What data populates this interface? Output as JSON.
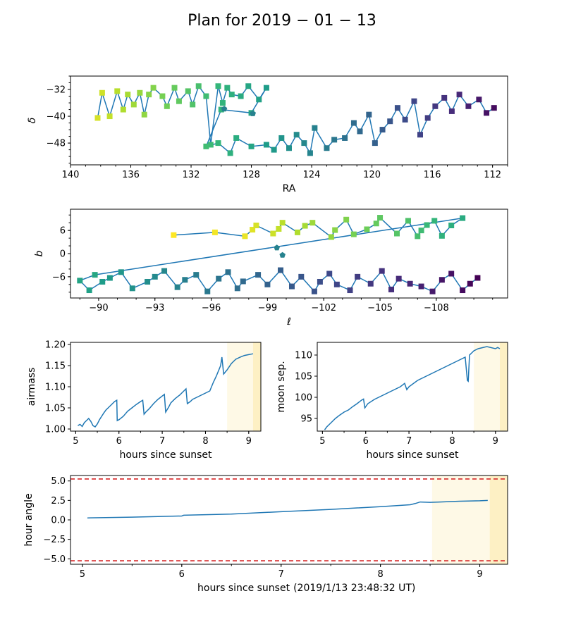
{
  "title": "Plan for 2019 − 01 − 13",
  "charts": {
    "sky": {
      "xlabel": "RA",
      "ylabel": "δ",
      "xlim": [
        140,
        111
      ],
      "ylim": [
        -54.5,
        -28
      ],
      "xticks": [
        "140",
        "136",
        "132",
        "128",
        "124",
        "120",
        "116",
        "112"
      ],
      "yticks": [
        "−32",
        "−40",
        "−48"
      ],
      "points": [
        [
          138.2,
          -40.5
        ],
        [
          137.9,
          -33.0
        ],
        [
          137.4,
          -40.0
        ],
        [
          136.9,
          -32.5
        ],
        [
          136.5,
          -38.0
        ],
        [
          136.2,
          -33.5
        ],
        [
          135.8,
          -36.5
        ],
        [
          135.4,
          -33.0
        ],
        [
          135.1,
          -39.5
        ],
        [
          134.8,
          -33.5
        ],
        [
          134.5,
          -31.5
        ],
        [
          133.9,
          -34.0
        ],
        [
          133.6,
          -37.0
        ],
        [
          133.1,
          -31.5
        ],
        [
          132.8,
          -35.5
        ],
        [
          132.2,
          -32.5
        ],
        [
          131.9,
          -36.5
        ],
        [
          131.5,
          -31.0
        ],
        [
          131.0,
          -34.0
        ],
        [
          130.7,
          -48.5
        ],
        [
          130.2,
          -31.0
        ],
        [
          129.9,
          -36.0
        ],
        [
          129.6,
          -31.5
        ],
        [
          129.3,
          -33.5
        ],
        [
          128.7,
          -34.0
        ],
        [
          128.2,
          -31.0
        ],
        [
          127.5,
          -35.0
        ],
        [
          127.0,
          -31.5
        ],
        [
          128.0,
          -39.0
        ],
        [
          130.0,
          -38.0
        ],
        [
          131.0,
          -49.0
        ],
        [
          130.2,
          -48.0
        ],
        [
          129.4,
          -51.0
        ],
        [
          129.0,
          -46.5
        ],
        [
          128.0,
          -49.0
        ],
        [
          127.0,
          -48.5
        ],
        [
          126.5,
          -50.0
        ],
        [
          126.0,
          -46.5
        ],
        [
          125.5,
          -49.5
        ],
        [
          125.0,
          -45.5
        ],
        [
          124.5,
          -48.0
        ],
        [
          124.1,
          -51.0
        ],
        [
          123.8,
          -43.5
        ],
        [
          123.0,
          -49.5
        ],
        [
          122.5,
          -47.0
        ],
        [
          121.8,
          -46.5
        ],
        [
          121.2,
          -42.0
        ],
        [
          120.8,
          -44.5
        ],
        [
          120.2,
          -39.5
        ],
        [
          119.8,
          -48.0
        ],
        [
          119.3,
          -44.0
        ],
        [
          118.8,
          -41.5
        ],
        [
          118.3,
          -37.5
        ],
        [
          117.8,
          -41.0
        ],
        [
          117.2,
          -35.5
        ],
        [
          116.8,
          -45.5
        ],
        [
          116.3,
          -40.5
        ],
        [
          115.8,
          -37.0
        ],
        [
          115.2,
          -34.5
        ],
        [
          114.7,
          -38.5
        ],
        [
          114.2,
          -33.5
        ],
        [
          113.6,
          -37.0
        ],
        [
          112.9,
          -35.0
        ],
        [
          112.4,
          -39.0
        ],
        [
          111.9,
          -37.5
        ]
      ],
      "pentagons": [
        [
          129.8,
          -37.8
        ],
        [
          127.9,
          -39.2
        ]
      ]
    },
    "galactic": {
      "xlabel": "ℓ",
      "ylabel": "b",
      "xlim": [
        -88.5,
        -111.8
      ],
      "ylim": [
        -11.5,
        11.5
      ],
      "xticks": [
        "−90",
        "−93",
        "−96",
        "−99",
        "−102",
        "−105",
        "−108"
      ],
      "yticks": [
        "6",
        "0",
        "−6"
      ],
      "points": [
        [
          -94.0,
          4.8
        ],
        [
          -96.2,
          5.5
        ],
        [
          -97.8,
          4.5
        ],
        [
          -98.2,
          6.2
        ],
        [
          -98.4,
          7.3
        ],
        [
          -99.3,
          5.2
        ],
        [
          -99.6,
          6.4
        ],
        [
          -99.8,
          8.0
        ],
        [
          -100.6,
          5.5
        ],
        [
          -101.0,
          7.2
        ],
        [
          -101.4,
          8.0
        ],
        [
          -102.4,
          4.3
        ],
        [
          -102.6,
          6.1
        ],
        [
          -103.2,
          8.8
        ],
        [
          -103.6,
          5.0
        ],
        [
          -104.3,
          6.3
        ],
        [
          -104.8,
          7.8
        ],
        [
          -105.0,
          9.3
        ],
        [
          -105.9,
          5.2
        ],
        [
          -106.5,
          8.5
        ],
        [
          -107.0,
          4.5
        ],
        [
          -107.2,
          6.0
        ],
        [
          -107.5,
          7.4
        ],
        [
          -107.9,
          8.5
        ],
        [
          -108.3,
          4.6
        ],
        [
          -108.8,
          7.3
        ],
        [
          -109.4,
          9.2
        ],
        [
          -89.8,
          -5.5
        ],
        [
          -89.0,
          -7.0
        ],
        [
          -89.5,
          -9.5
        ],
        [
          -90.2,
          -7.3
        ],
        [
          -90.6,
          -6.3
        ],
        [
          -91.2,
          -4.8
        ],
        [
          -91.8,
          -9.0
        ],
        [
          -92.6,
          -7.3
        ],
        [
          -93.0,
          -6.0
        ],
        [
          -93.5,
          -4.5
        ],
        [
          -94.2,
          -8.7
        ],
        [
          -94.6,
          -6.8
        ],
        [
          -95.2,
          -5.5
        ],
        [
          -95.8,
          -9.8
        ],
        [
          -96.4,
          -6.5
        ],
        [
          -96.9,
          -4.8
        ],
        [
          -97.4,
          -9.0
        ],
        [
          -97.7,
          -7.2
        ],
        [
          -98.5,
          -5.5
        ],
        [
          -99.0,
          -8.0
        ],
        [
          -99.7,
          -4.3
        ],
        [
          -100.3,
          -8.5
        ],
        [
          -100.8,
          -6.0
        ],
        [
          -101.5,
          -9.8
        ],
        [
          -101.8,
          -7.3
        ],
        [
          -102.3,
          -5.2
        ],
        [
          -102.7,
          -8.0
        ],
        [
          -103.4,
          -9.5
        ],
        [
          -103.8,
          -6.0
        ],
        [
          -104.5,
          -7.8
        ],
        [
          -105.1,
          -4.5
        ],
        [
          -105.6,
          -9.3
        ],
        [
          -106.0,
          -6.5
        ],
        [
          -106.6,
          -7.8
        ],
        [
          -107.2,
          -8.5
        ],
        [
          -107.8,
          -9.8
        ],
        [
          -108.3,
          -6.8
        ],
        [
          -108.8,
          -5.2
        ],
        [
          -109.4,
          -9.5
        ],
        [
          -109.8,
          -7.8
        ],
        [
          -110.2,
          -6.3
        ]
      ],
      "pentagons": [
        [
          -99.5,
          1.5
        ],
        [
          -99.8,
          -0.4
        ]
      ]
    },
    "airmass": {
      "xlabel": "hours since sunset",
      "ylabel": "airmass",
      "xlim": [
        4.88,
        9.28
      ],
      "ylim": [
        0.995,
        1.205
      ],
      "xticks": [
        "5",
        "6",
        "7",
        "8",
        "9"
      ],
      "yticks": [
        "1.00",
        "1.05",
        "1.10",
        "1.15",
        "1.20"
      ],
      "twilight": [
        [
          8.5,
          9.1,
          "#fef9e6"
        ],
        [
          9.1,
          9.28,
          "#fdf0c4"
        ]
      ],
      "x": [
        5.05,
        5.1,
        5.15,
        5.2,
        5.25,
        5.3,
        5.35,
        5.4,
        5.45,
        5.5,
        5.55,
        5.6,
        5.65,
        5.7,
        5.75,
        5.8,
        5.85,
        5.9,
        5.95,
        5.96,
        6.0,
        6.1,
        6.2,
        6.3,
        6.4,
        6.5,
        6.55,
        6.58,
        6.62,
        6.7,
        6.8,
        6.9,
        7.0,
        7.05,
        7.08,
        7.15,
        7.2,
        7.3,
        7.4,
        7.5,
        7.55,
        7.58,
        7.65,
        7.7,
        7.8,
        7.9,
        8.0,
        8.1,
        8.18,
        8.25,
        8.35,
        8.38,
        8.42,
        8.5,
        8.6,
        8.7,
        8.8,
        8.9,
        9.0,
        9.05,
        9.1
      ],
      "y": [
        1.008,
        1.011,
        1.006,
        1.015,
        1.02,
        1.025,
        1.018,
        1.008,
        1.005,
        1.012,
        1.022,
        1.03,
        1.038,
        1.045,
        1.05,
        1.055,
        1.06,
        1.065,
        1.068,
        1.02,
        1.022,
        1.03,
        1.042,
        1.05,
        1.058,
        1.065,
        1.068,
        1.035,
        1.04,
        1.048,
        1.06,
        1.07,
        1.078,
        1.082,
        1.04,
        1.052,
        1.062,
        1.072,
        1.08,
        1.09,
        1.095,
        1.06,
        1.065,
        1.07,
        1.075,
        1.08,
        1.085,
        1.09,
        1.11,
        1.125,
        1.15,
        1.17,
        1.13,
        1.14,
        1.155,
        1.165,
        1.17,
        1.174,
        1.176,
        1.177,
        1.178
      ]
    },
    "moon": {
      "xlabel": "hours since sunset",
      "ylabel": "moon sep.",
      "xlim": [
        4.88,
        9.28
      ],
      "ylim": [
        92.0,
        113.0
      ],
      "xticks": [
        "5",
        "6",
        "7",
        "8",
        "9"
      ],
      "yticks": [
        "95",
        "100",
        "105",
        "110"
      ],
      "twilight": [
        [
          8.5,
          9.1,
          "#fef9e6"
        ],
        [
          9.1,
          9.28,
          "#fdf0c4"
        ]
      ],
      "x": [
        5.05,
        5.1,
        5.2,
        5.3,
        5.4,
        5.5,
        5.6,
        5.7,
        5.8,
        5.9,
        5.95,
        5.98,
        6.05,
        6.2,
        6.4,
        6.6,
        6.8,
        6.9,
        6.95,
        7.0,
        7.2,
        7.4,
        7.6,
        7.8,
        7.9,
        8.0,
        8.1,
        8.2,
        8.3,
        8.35,
        8.37,
        8.4,
        8.45,
        8.5,
        8.6,
        8.8,
        9.0,
        9.05,
        9.1
      ],
      "y": [
        92.3,
        93.0,
        94.0,
        95.0,
        95.8,
        96.5,
        97.0,
        97.8,
        98.5,
        99.3,
        99.6,
        97.5,
        98.5,
        99.5,
        100.5,
        101.5,
        102.5,
        103.3,
        101.8,
        102.5,
        104.0,
        105.0,
        106.0,
        107.0,
        107.5,
        108.0,
        108.5,
        109.0,
        109.5,
        104.0,
        103.8,
        110.0,
        110.5,
        111.0,
        111.5,
        112.0,
        111.5,
        111.8,
        111.5
      ]
    },
    "hourangle": {
      "xlabel": "hours since sunset",
      "xlabel_time": "(2019/1/13 23:48:32 UT)",
      "ylabel": "hour angle",
      "xlim": [
        4.88,
        9.28
      ],
      "ylim": [
        -5.7,
        5.7
      ],
      "xticks": [
        "5",
        "6",
        "7",
        "8",
        "9"
      ],
      "yticks": [
        "5.0",
        "2.5",
        "0.0",
        "−2.5",
        "−5.0"
      ],
      "limits": [
        5.25,
        -5.25
      ],
      "twilight": [
        [
          8.52,
          9.1,
          "#fef9e6"
        ],
        [
          9.1,
          9.28,
          "#fdf0c4"
        ]
      ],
      "x": [
        5.05,
        5.5,
        6.0,
        6.02,
        6.5,
        7.0,
        7.5,
        8.0,
        8.3,
        8.35,
        8.4,
        8.5,
        8.6,
        8.8,
        9.0,
        9.08
      ],
      "y": [
        0.25,
        0.35,
        0.5,
        0.6,
        0.75,
        1.05,
        1.35,
        1.7,
        1.95,
        2.1,
        2.3,
        2.25,
        2.3,
        2.4,
        2.45,
        2.5
      ]
    }
  }
}
